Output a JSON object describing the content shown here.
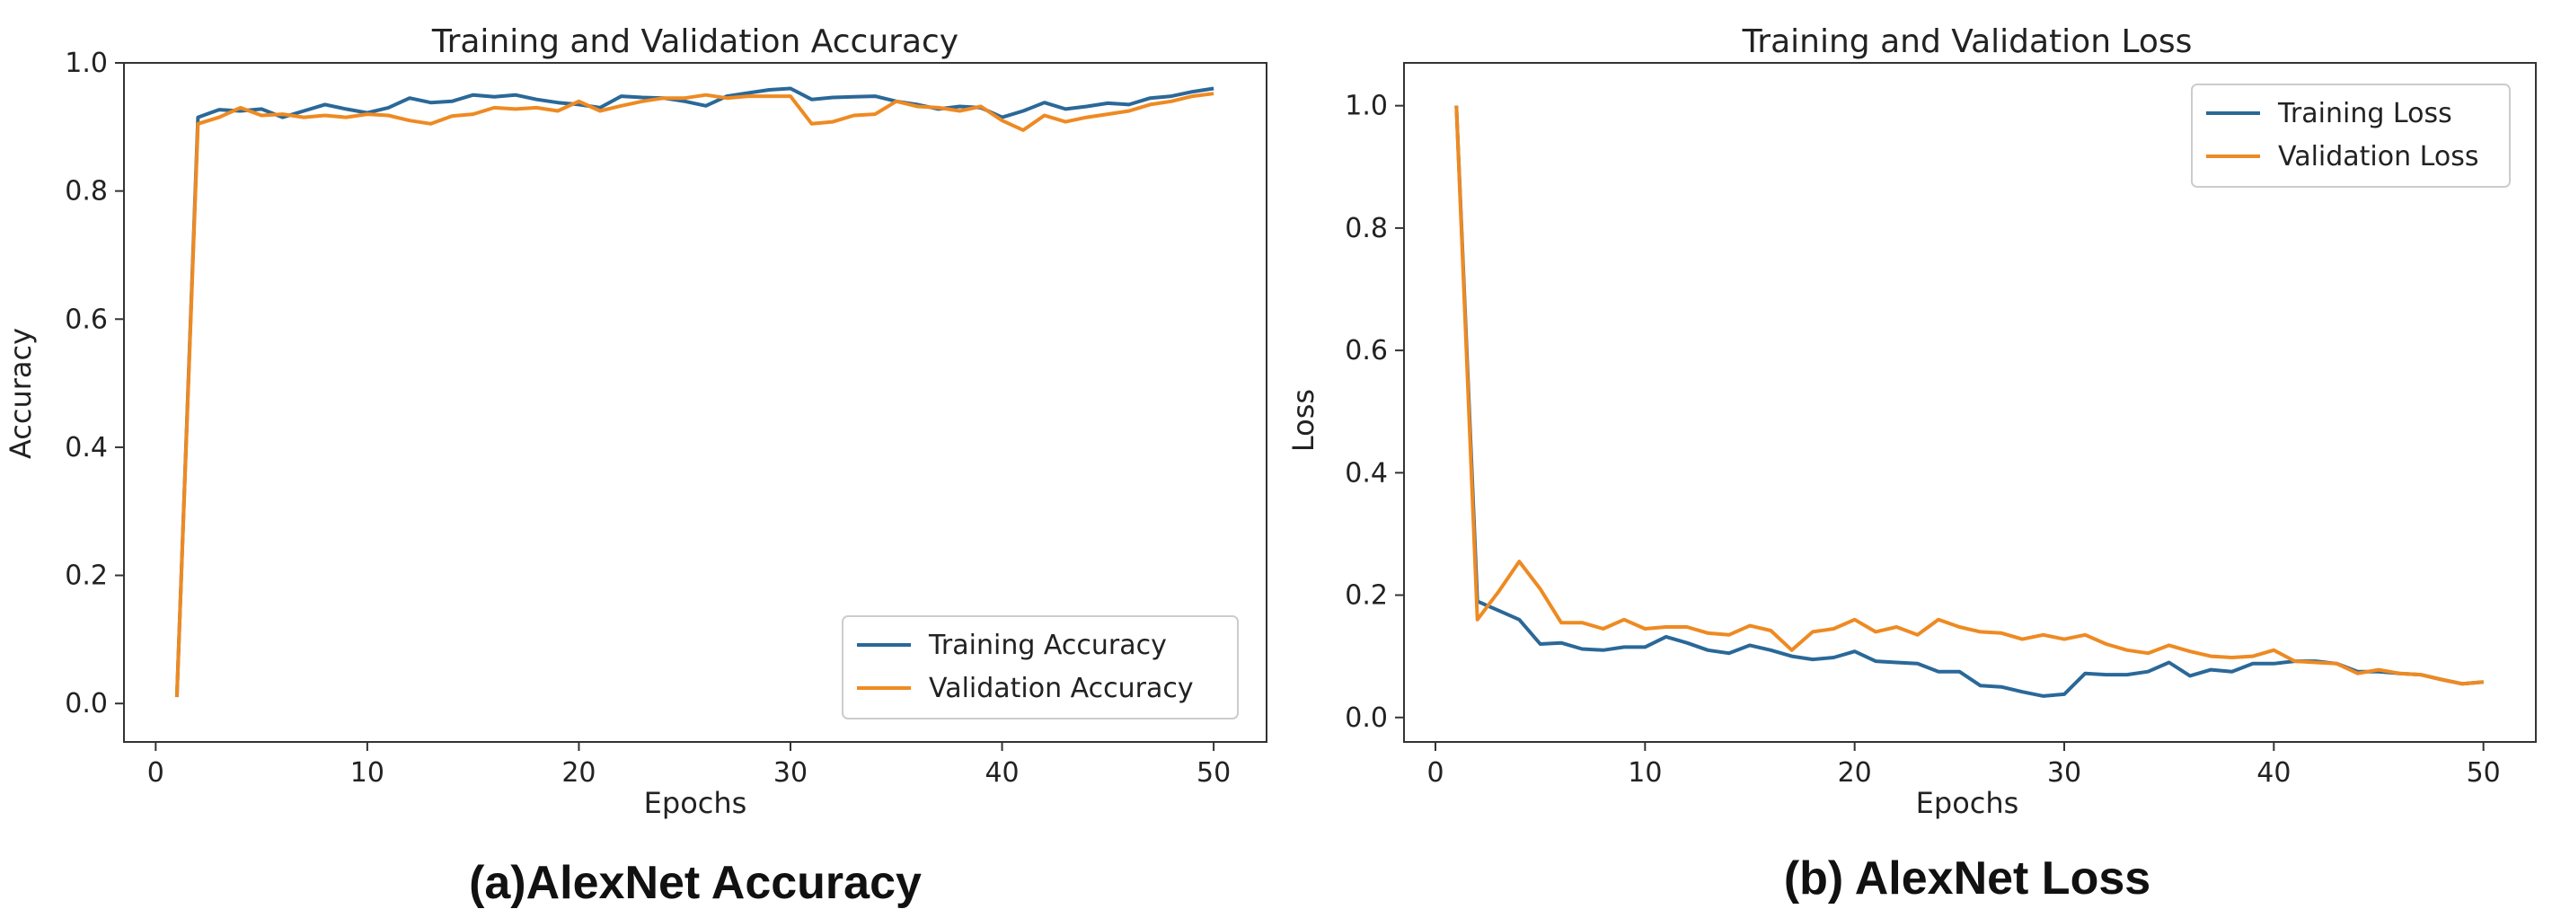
{
  "colors": {
    "training": "#2a6898",
    "validation": "#ee8a22",
    "axis": "#333333"
  },
  "chart_data": [
    {
      "type": "line",
      "title": "Training and Validation Accuracy",
      "xlabel": "Epochs",
      "ylabel": "Accuracy",
      "xlim": [
        -1.5,
        52.5
      ],
      "ylim": [
        -0.06,
        1.0
      ],
      "xticks": [
        0,
        10,
        20,
        30,
        40,
        50
      ],
      "yticks": [
        0.0,
        0.2,
        0.4,
        0.6,
        0.8,
        1.0
      ],
      "xtick_labels": [
        "0",
        "10",
        "20",
        "30",
        "40",
        "50"
      ],
      "ytick_labels": [
        "0.0",
        "0.2",
        "0.4",
        "0.6",
        "0.8",
        "1.0"
      ],
      "legend_position": "bottom-right",
      "caption": "(a)AlexNet Accuracy",
      "x": [
        1,
        2,
        3,
        4,
        5,
        6,
        7,
        8,
        9,
        10,
        11,
        12,
        13,
        14,
        15,
        16,
        17,
        18,
        19,
        20,
        21,
        22,
        23,
        24,
        25,
        26,
        27,
        28,
        29,
        30,
        31,
        32,
        33,
        34,
        35,
        36,
        37,
        38,
        39,
        40,
        41,
        42,
        43,
        44,
        45,
        46,
        47,
        48,
        49,
        50
      ],
      "series": [
        {
          "name": "Training Accuracy",
          "color_key": "training",
          "values": [
            0.01,
            0.915,
            0.927,
            0.925,
            0.928,
            0.915,
            0.925,
            0.935,
            0.928,
            0.922,
            0.93,
            0.945,
            0.938,
            0.94,
            0.95,
            0.947,
            0.95,
            0.943,
            0.938,
            0.935,
            0.93,
            0.948,
            0.946,
            0.945,
            0.94,
            0.933,
            0.948,
            0.953,
            0.958,
            0.96,
            0.943,
            0.946,
            0.947,
            0.948,
            0.94,
            0.935,
            0.928,
            0.932,
            0.93,
            0.915,
            0.925,
            0.938,
            0.928,
            0.932,
            0.937,
            0.935,
            0.945,
            0.948,
            0.955,
            0.96
          ]
        },
        {
          "name": "Validation Accuracy",
          "color_key": "validation",
          "values": [
            0.01,
            0.905,
            0.915,
            0.93,
            0.918,
            0.92,
            0.915,
            0.918,
            0.915,
            0.92,
            0.918,
            0.91,
            0.905,
            0.917,
            0.92,
            0.93,
            0.928,
            0.93,
            0.925,
            0.94,
            0.925,
            0.933,
            0.94,
            0.945,
            0.945,
            0.95,
            0.945,
            0.948,
            0.948,
            0.948,
            0.905,
            0.908,
            0.918,
            0.92,
            0.94,
            0.932,
            0.93,
            0.925,
            0.932,
            0.91,
            0.895,
            0.918,
            0.908,
            0.915,
            0.92,
            0.925,
            0.935,
            0.94,
            0.948,
            0.952
          ]
        }
      ]
    },
    {
      "type": "line",
      "title": "Training and Validation Loss",
      "xlabel": "Epochs",
      "ylabel": "Loss",
      "xlim": [
        -1.5,
        52.5
      ],
      "ylim": [
        -0.04,
        1.07
      ],
      "xticks": [
        0,
        10,
        20,
        30,
        40,
        50
      ],
      "yticks": [
        0.0,
        0.2,
        0.4,
        0.6,
        0.8,
        1.0
      ],
      "xtick_labels": [
        "0",
        "10",
        "20",
        "30",
        "40",
        "50"
      ],
      "ytick_labels": [
        "0.0",
        "0.2",
        "0.4",
        "0.6",
        "0.8",
        "1.0"
      ],
      "legend_position": "top-right",
      "caption": "(b) AlexNet Loss",
      "x": [
        1,
        2,
        3,
        4,
        5,
        6,
        7,
        8,
        9,
        10,
        11,
        12,
        13,
        14,
        15,
        16,
        17,
        18,
        19,
        20,
        21,
        22,
        23,
        24,
        25,
        26,
        27,
        28,
        29,
        30,
        31,
        32,
        33,
        34,
        35,
        36,
        37,
        38,
        39,
        40,
        41,
        42,
        43,
        44,
        45,
        46,
        47,
        48,
        49,
        50
      ],
      "series": [
        {
          "name": "Training Loss",
          "color_key": "training",
          "values": [
            1.0,
            0.19,
            0.175,
            0.16,
            0.12,
            0.122,
            0.112,
            0.11,
            0.115,
            0.115,
            0.132,
            0.122,
            0.11,
            0.105,
            0.118,
            0.11,
            0.1,
            0.095,
            0.098,
            0.108,
            0.092,
            0.09,
            0.088,
            0.075,
            0.075,
            0.052,
            0.05,
            0.042,
            0.035,
            0.038,
            0.072,
            0.07,
            0.07,
            0.075,
            0.09,
            0.068,
            0.078,
            0.075,
            0.088,
            0.088,
            0.092,
            0.092,
            0.088,
            0.075,
            0.075,
            0.072,
            0.07,
            0.062,
            0.055,
            0.058
          ]
        },
        {
          "name": "Validation Loss",
          "color_key": "validation",
          "values": [
            1.0,
            0.16,
            0.205,
            0.255,
            0.21,
            0.155,
            0.155,
            0.145,
            0.16,
            0.145,
            0.148,
            0.148,
            0.138,
            0.135,
            0.15,
            0.142,
            0.11,
            0.14,
            0.145,
            0.16,
            0.14,
            0.148,
            0.135,
            0.16,
            0.148,
            0.14,
            0.138,
            0.128,
            0.135,
            0.128,
            0.135,
            0.12,
            0.11,
            0.105,
            0.118,
            0.108,
            0.1,
            0.098,
            0.1,
            0.11,
            0.092,
            0.09,
            0.088,
            0.072,
            0.078,
            0.072,
            0.07,
            0.062,
            0.055,
            0.058
          ]
        }
      ]
    }
  ]
}
